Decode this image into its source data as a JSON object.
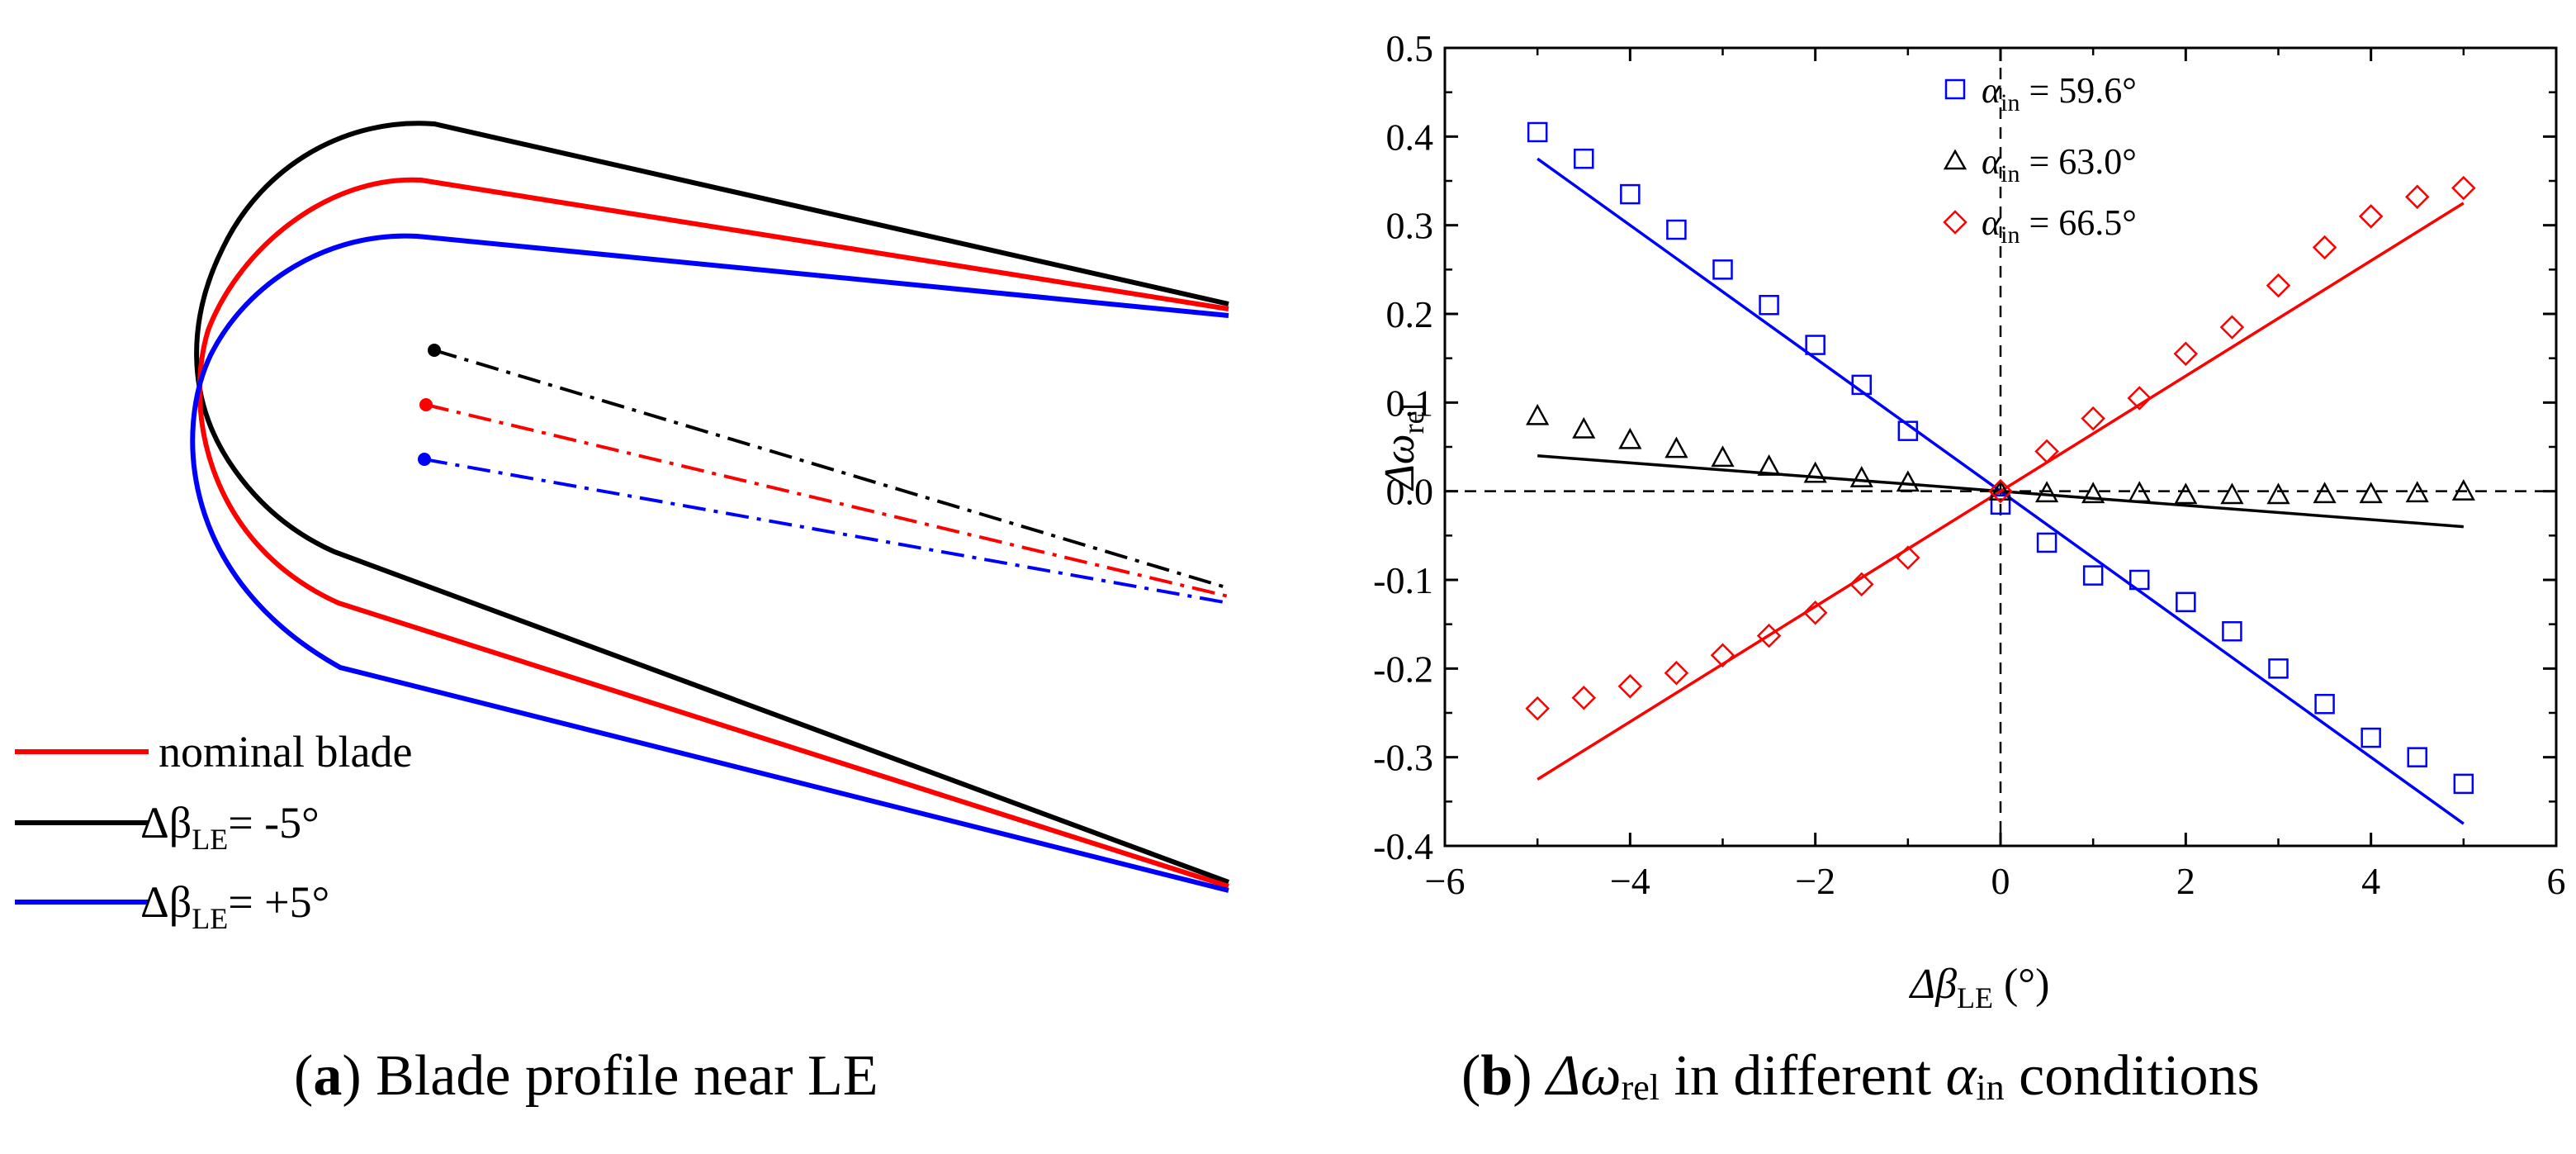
{
  "panel_a": {
    "caption_letter": "a",
    "caption_text": "Blade profile near LE",
    "legend": [
      {
        "label": "nominal blade",
        "color": "#ff0000"
      },
      {
        "prefix": "Δβ",
        "sub": "LE",
        "suffix": "= -5°",
        "color": "#000000"
      },
      {
        "prefix": "Δβ",
        "sub": "LE",
        "suffix": "= +5°",
        "color": "#0000ff"
      }
    ]
  },
  "panel_b": {
    "caption_letter": "b",
    "caption_mid": "Δω",
    "caption_sub1": "rel",
    "caption_after": " in different ",
    "caption_alpha": "α",
    "caption_sub2": "in",
    "caption_end": " conditions"
  },
  "chart_data": {
    "type": "scatter",
    "title": "",
    "xlabel_main": "Δβ",
    "xlabel_sub": "LE",
    "xlabel_unit": " (°)",
    "ylabel_main": "Δω",
    "ylabel_sub": "rel",
    "xlim": [
      -6,
      6
    ],
    "ylim": [
      -0.4,
      0.5
    ],
    "x_ticks": [
      -6,
      -4,
      -2,
      0,
      2,
      4,
      6
    ],
    "x_tick_labels": [
      "−6",
      "−4",
      "−2",
      "0",
      "2",
      "4",
      "6"
    ],
    "y_ticks": [
      -0.4,
      -0.3,
      -0.2,
      -0.1,
      0.0,
      0.1,
      0.2,
      0.3,
      0.4,
      0.5
    ],
    "y_tick_labels": [
      "-0.4",
      "-0.3",
      "-0.2",
      "-0.1",
      "0.0",
      "0.1",
      "0.2",
      "0.3",
      "0.4",
      "0.5"
    ],
    "legend_position": "top-center",
    "reference_lines": {
      "x": 0,
      "y": 0,
      "style": "dashed"
    },
    "series": [
      {
        "name": "α_in = 59.6°",
        "legend_prefix": "α",
        "legend_sub": "in",
        "legend_value": " = 59.6°",
        "marker": "square",
        "color": "#0000ff",
        "x": [
          -5,
          -4.5,
          -4,
          -3.5,
          -3,
          -2.5,
          -2,
          -1.5,
          -1,
          0,
          0.5,
          1,
          1.5,
          2,
          2.5,
          3,
          3.5,
          4,
          4.5,
          5
        ],
        "y": [
          0.405,
          0.375,
          0.335,
          0.295,
          0.25,
          0.21,
          0.165,
          0.12,
          0.068,
          -0.015,
          -0.058,
          -0.095,
          -0.1,
          -0.125,
          -0.158,
          -0.2,
          -0.24,
          -0.278,
          -0.3,
          -0.33
        ],
        "fit": {
          "x": [
            -5,
            5
          ],
          "y": [
            0.375,
            -0.375
          ]
        }
      },
      {
        "name": "α_in = 63.0°",
        "legend_prefix": "α",
        "legend_sub": "in",
        "legend_value": " = 63.0°",
        "marker": "triangle",
        "color": "#000000",
        "x": [
          -5,
          -4.5,
          -4,
          -3.5,
          -3,
          -2.5,
          -2,
          -1.5,
          -1,
          0,
          0.5,
          1,
          1.5,
          2,
          2.5,
          3,
          3.5,
          4,
          4.5,
          5
        ],
        "y": [
          0.085,
          0.07,
          0.058,
          0.048,
          0.038,
          0.028,
          0.02,
          0.015,
          0.01,
          0.0,
          -0.002,
          -0.003,
          -0.002,
          -0.004,
          -0.004,
          -0.004,
          -0.003,
          -0.003,
          -0.002,
          0.0
        ],
        "fit": {
          "x": [
            -5,
            5
          ],
          "y": [
            0.04,
            -0.04
          ]
        }
      },
      {
        "name": "α_in = 66.5°",
        "legend_prefix": "α",
        "legend_sub": "in",
        "legend_value": " = 66.5°",
        "marker": "diamond",
        "color": "#ff0000",
        "x": [
          -5,
          -4.5,
          -4,
          -3.5,
          -3,
          -2.5,
          -2,
          -1.5,
          -1,
          0,
          0.5,
          1,
          1.5,
          2,
          2.5,
          3,
          3.5,
          4,
          4.5,
          5
        ],
        "y": [
          -0.245,
          -0.233,
          -0.22,
          -0.205,
          -0.185,
          -0.163,
          -0.137,
          -0.105,
          -0.075,
          0.0,
          0.045,
          0.082,
          0.105,
          0.155,
          0.185,
          0.232,
          0.275,
          0.31,
          0.332,
          0.342
        ],
        "fit": {
          "x": [
            -5,
            5
          ],
          "y": [
            -0.325,
            0.325
          ]
        }
      }
    ]
  }
}
